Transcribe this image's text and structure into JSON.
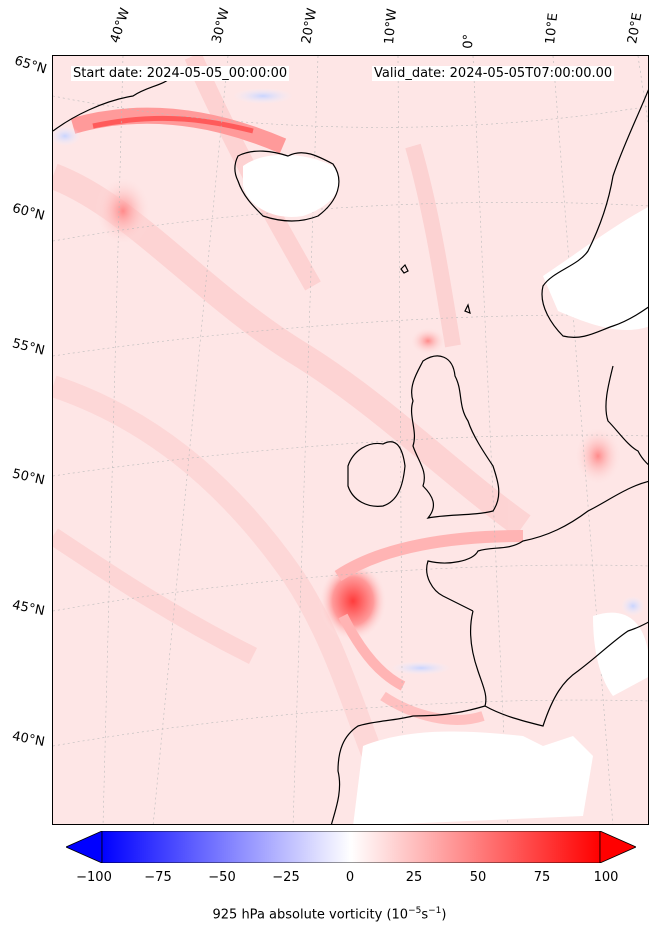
{
  "header": {
    "start_date": "Start date: 2024-05-05_00:00:00",
    "valid_date": "Valid_date: 2024-05-05T07:00:00.00"
  },
  "longitude_labels": [
    "40°W",
    "30°W",
    "20°W",
    "10°W",
    "0°",
    "10°E",
    "20°E"
  ],
  "latitude_labels": [
    "65°N",
    "60°N",
    "55°N",
    "50°N",
    "45°N",
    "40°N"
  ],
  "colorbar": {
    "label": "925 hPa absolute vorticity (10",
    "label_exp1": "−5",
    "label_mid": "s",
    "label_exp2": "−1",
    "label_end": ")",
    "ticks": [
      "−100",
      "−75",
      "−50",
      "−25",
      "0",
      "25",
      "50",
      "75",
      "100"
    ],
    "min": -100,
    "max": 100,
    "colormap": "bwr",
    "low_color": "#0000ff",
    "mid_color": "#ffffff",
    "high_color": "#ff0000",
    "extend": "both"
  },
  "map": {
    "projection": "polar stereographic (North Atlantic / Western Europe)",
    "coastline_color": "#000000",
    "gridline_style": "dotted grey"
  }
}
